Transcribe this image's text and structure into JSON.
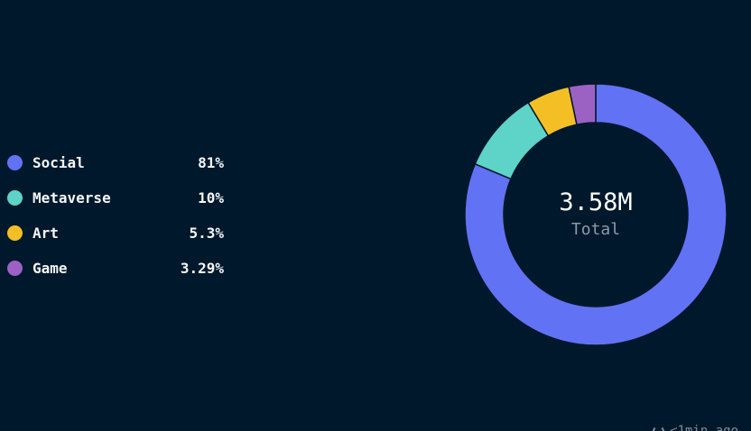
{
  "chart_data": {
    "type": "pie",
    "categories": [
      "Social",
      "Metaverse",
      "Art",
      "Game"
    ],
    "values": [
      81,
      10,
      5.3,
      3.29
    ],
    "value_labels": [
      "81%",
      "10%",
      "5.3%",
      "3.29%"
    ],
    "colors": [
      "#6272f4",
      "#5ed3c8",
      "#f4bf25",
      "#9b62c4"
    ],
    "center": {
      "value": "3.58M",
      "label": "Total"
    },
    "legend_position": "left"
  },
  "footer": {
    "updated": "<1min ago",
    "refresh_icon": "refresh-icon"
  }
}
